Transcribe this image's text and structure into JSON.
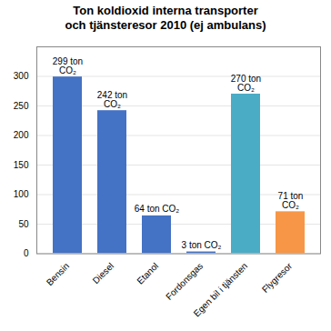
{
  "chart_data": {
    "type": "bar",
    "title": "Ton koldioxid interna transporter\noch tjänsteresor 2010 (ej ambulans)",
    "categories": [
      "Bensin",
      "Diesel",
      "Etanol",
      "Fordonsgas",
      "Egen bil i tjänsten",
      "Flygresor"
    ],
    "values": [
      299,
      242,
      64,
      3,
      270,
      71
    ],
    "value_labels": [
      "299 ton\nCO₂",
      "242 ton\nCO₂",
      "64 ton CO₂",
      "3 ton CO₂",
      "270 ton\nCO₂",
      "71 ton\nCO₂"
    ],
    "colors": [
      "#4472C4",
      "#4472C4",
      "#4472C4",
      "#4472C4",
      "#4BACC6",
      "#F79646"
    ],
    "ylim": [
      0,
      350
    ],
    "yticks": [
      0,
      50,
      100,
      150,
      200,
      250,
      300
    ],
    "grid": true
  }
}
